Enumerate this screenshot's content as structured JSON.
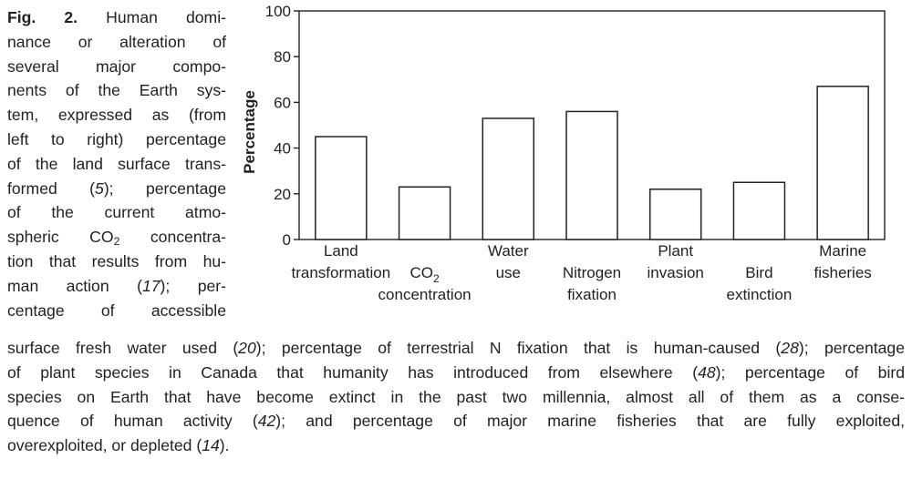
{
  "caption": {
    "figure_label": "Fig. 2.",
    "left_lines": [
      " Human domi-",
      "nance or alteration of",
      "several major compo-",
      "nents of the Earth sys-",
      "tem, expressed as (from",
      "left to right) percentage",
      "of the land surface trans-",
      "formed (5); percentage",
      "of the current atmo-",
      "spheric CO2 concentra-",
      "tion that results from hu-",
      "man action (17); per-",
      "centage of accessible"
    ],
    "bottom_lines": [
      "surface fresh water used (20); percentage of terrestrial N fixation that is human-caused (28); percentage",
      "of plant species in Canada that humanity has introduced from elsewhere (48); percentage of bird",
      "species on Earth that have become extinct in the past two millennia, almost all of them as a conse-",
      "quence of human activity (42); and percentage of major marine fisheries that are fully exploited,",
      "overexploited, or depleted (14)."
    ]
  },
  "chart_data": {
    "type": "bar",
    "categories": [
      "Land transformation",
      "CO2 concentration",
      "Water use",
      "Nitrogen fixation",
      "Plant invasion",
      "Bird extinction",
      "Marine fisheries"
    ],
    "category_label_lines": [
      {
        "text": [
          "Land",
          "transformation"
        ],
        "row": "top"
      },
      {
        "text": [
          "CO2",
          "concentration"
        ],
        "row": "mid"
      },
      {
        "text": [
          "Water",
          "use"
        ],
        "row": "top"
      },
      {
        "text": [
          "Nitrogen",
          "fixation"
        ],
        "row": "mid"
      },
      {
        "text": [
          "Plant",
          "invasion"
        ],
        "row": "top"
      },
      {
        "text": [
          "Bird",
          "extinction"
        ],
        "row": "mid"
      },
      {
        "text": [
          "Marine",
          "fisheries"
        ],
        "row": "top"
      }
    ],
    "values": [
      45,
      23,
      53,
      56,
      22,
      25,
      67
    ],
    "ylabel": "Percentage",
    "yticks": [
      0,
      20,
      40,
      60,
      80,
      100
    ],
    "ylim": [
      0,
      100
    ],
    "grid": false
  },
  "colors": {
    "bar_fill": "#ffffff",
    "stroke": "#222222"
  }
}
